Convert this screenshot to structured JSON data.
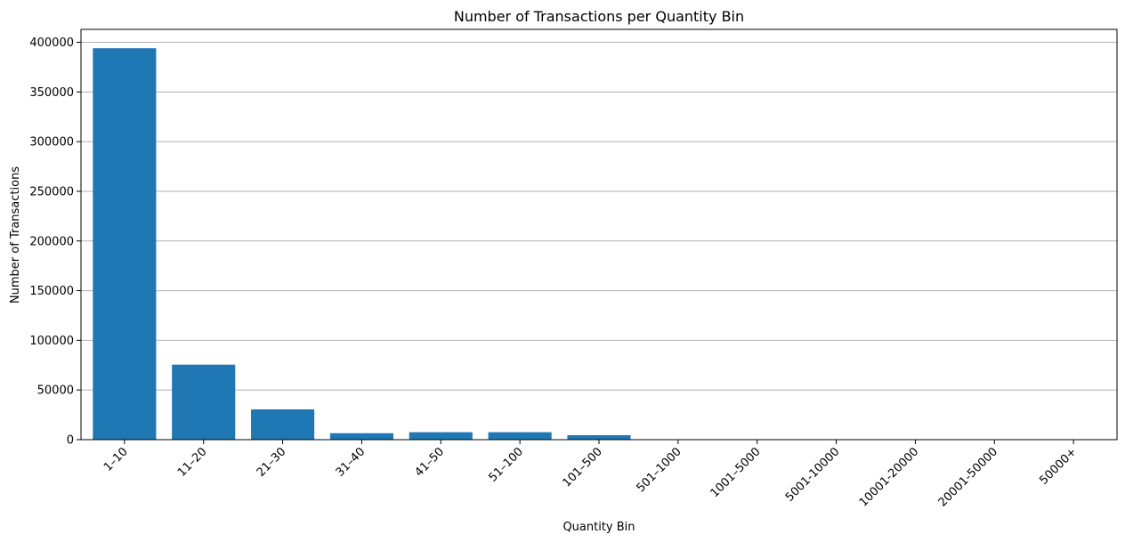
{
  "chart_data": {
    "type": "bar",
    "title": "Number of Transactions per Quantity Bin",
    "xlabel": "Quantity Bin",
    "ylabel": "Number of Transactions",
    "categories": [
      "1–10",
      "11–20",
      "21–30",
      "31–40",
      "41–50",
      "51–100",
      "101–500",
      "501–1000",
      "1001–5000",
      "5001-10000",
      "10001-20000",
      "20001-50000",
      "50000+"
    ],
    "values": [
      394000,
      75500,
      30500,
      6500,
      7500,
      7500,
      4500,
      150,
      80,
      10,
      5,
      3,
      2
    ],
    "ylim": [
      0,
      413000
    ],
    "yticks": [
      0,
      50000,
      100000,
      150000,
      200000,
      250000,
      300000,
      350000,
      400000
    ],
    "grid": "y",
    "bar_color": "#1f77b4",
    "legend": "none"
  }
}
